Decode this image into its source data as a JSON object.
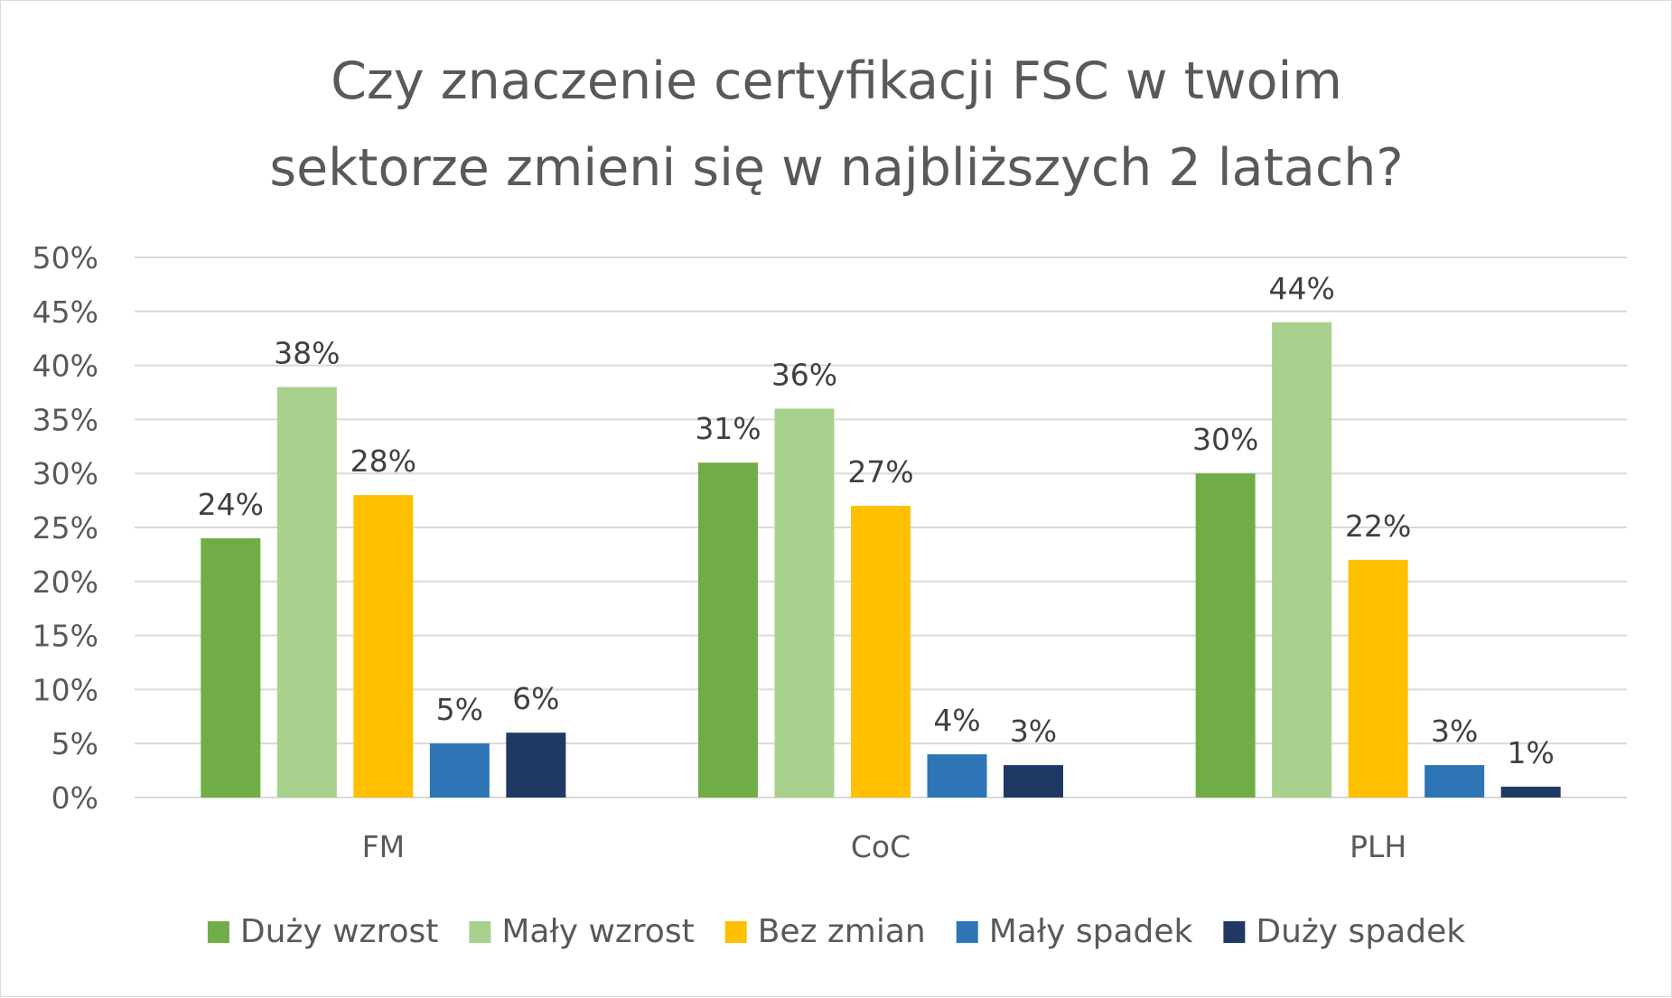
{
  "chart_data": {
    "type": "bar",
    "title": "Czy znaczenie certyfikacji FSC w twoim sektorze zmieni się w najbliższych 2 latach?",
    "title_lines": [
      "Czy znaczenie certyfikacji FSC w twoim",
      "sektorze zmieni się w najbliższych 2 latach?"
    ],
    "xlabel": "",
    "ylabel": "",
    "categories": [
      "FM",
      "CoC",
      "PLH"
    ],
    "series": [
      {
        "name": "Duży wzrost",
        "values": [
          24,
          31,
          30
        ],
        "color": "#70ad47"
      },
      {
        "name": "Mały wzrost",
        "values": [
          38,
          36,
          44
        ],
        "color": "#a9d18e"
      },
      {
        "name": "Bez zmian",
        "values": [
          28,
          27,
          22
        ],
        "color": "#ffc000"
      },
      {
        "name": "Mały spadek",
        "values": [
          5,
          4,
          3
        ],
        "color": "#2e75b6"
      },
      {
        "name": "Duży spadek",
        "values": [
          6,
          3,
          1
        ],
        "color": "#203864"
      }
    ],
    "value_labels": [
      [
        "24%",
        "31%",
        "30%"
      ],
      [
        "38%",
        "36%",
        "44%"
      ],
      [
        "28%",
        "27%",
        "22%"
      ],
      [
        "5%",
        "4%",
        "3%"
      ],
      [
        "6%",
        "3%",
        "1%"
      ]
    ],
    "y_ticks": [
      "0%",
      "5%",
      "10%",
      "15%",
      "20%",
      "25%",
      "30%",
      "35%",
      "40%",
      "45%",
      "50%"
    ],
    "ylim": [
      0,
      50
    ],
    "grid": true,
    "legend_position": "bottom"
  }
}
